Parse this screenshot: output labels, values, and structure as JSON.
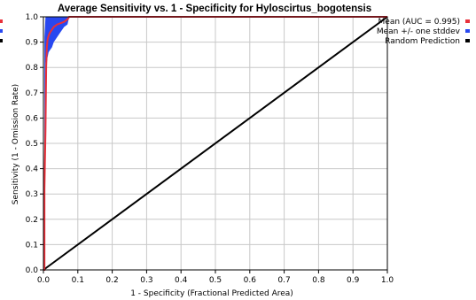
{
  "chart_data": {
    "type": "line",
    "title": "Average Sensitivity vs. 1 - Specificity for Hyloscirtus_bogotensis",
    "xlabel": "1 - Specificity (Fractional Predicted Area)",
    "ylabel": "Sensitivity (1 - Omission Rate)",
    "xlim": [
      0,
      1
    ],
    "ylim": [
      0,
      1
    ],
    "x_ticks": [
      "0.0",
      "0.1",
      "0.2",
      "0.3",
      "0.4",
      "0.5",
      "0.6",
      "0.7",
      "0.8",
      "0.9",
      "1.0"
    ],
    "y_ticks": [
      "0.0",
      "0.1",
      "0.2",
      "0.3",
      "0.4",
      "0.5",
      "0.6",
      "0.7",
      "0.8",
      "0.9",
      "1.0"
    ],
    "grid": true,
    "legend_position": "right",
    "series": [
      {
        "name": "Mean (AUC = 0.995)",
        "color": "#e8303a",
        "x": [
          0,
          0.003,
          0.003,
          0.006,
          0.008,
          0.01,
          0.012,
          0.015,
          0.018,
          0.02,
          0.025,
          0.03,
          0.035,
          0.04,
          0.05,
          0.06,
          0.07,
          0.075,
          1.0
        ],
        "y": [
          0,
          0,
          0.32,
          0.55,
          0.8,
          0.88,
          0.91,
          0.925,
          0.935,
          0.94,
          0.95,
          0.96,
          0.965,
          0.97,
          0.975,
          0.98,
          0.99,
          1.0,
          1.0
        ]
      },
      {
        "name": "Mean +/- one stddev",
        "color": "#2848f0",
        "upper_x": [
          0.003,
          0.006,
          0.075,
          1.0
        ],
        "upper_y": [
          0.92,
          1.0,
          1.0,
          1.0
        ],
        "lower_x": [
          0.003,
          0.006,
          0.01,
          0.012,
          0.015,
          0.02,
          0.025,
          0.03,
          0.04,
          0.05,
          0.06,
          0.07,
          0.075
        ],
        "lower_y": [
          0.33,
          0.82,
          0.82,
          0.84,
          0.86,
          0.87,
          0.88,
          0.9,
          0.92,
          0.94,
          0.96,
          0.97,
          1.0
        ]
      },
      {
        "name": "Random Prediction",
        "color": "#000000",
        "x": [
          0,
          1
        ],
        "y": [
          0,
          1
        ]
      }
    ]
  }
}
